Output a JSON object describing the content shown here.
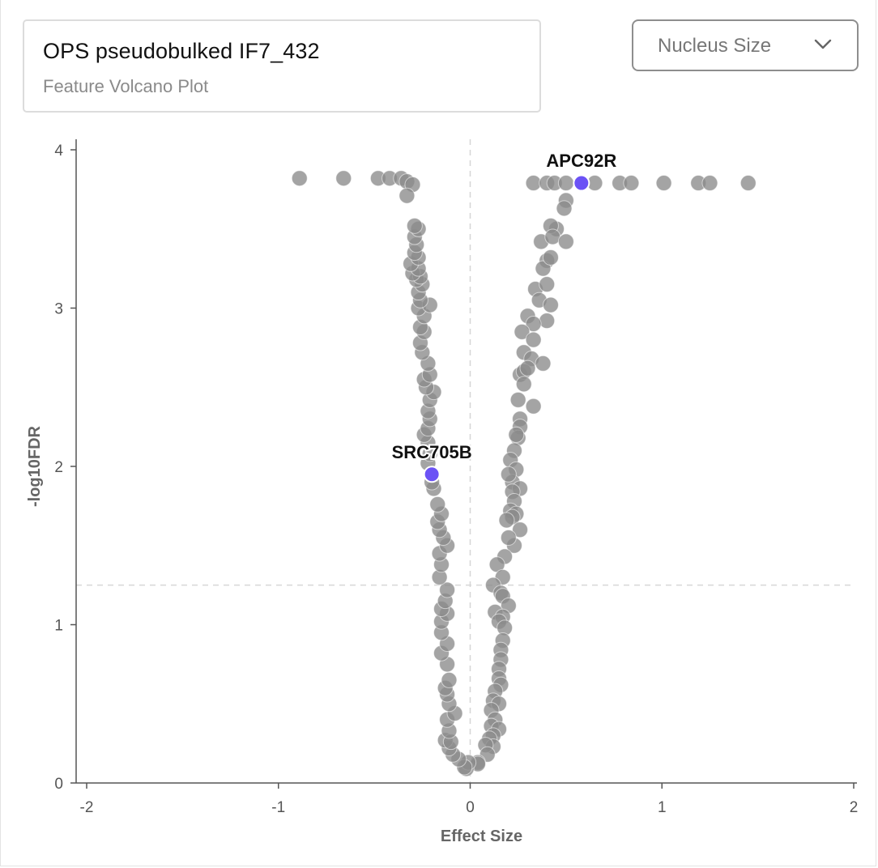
{
  "header": {
    "title": "OPS pseudobulked IF7_432",
    "subtitle": "Feature Volcano Plot"
  },
  "feature_select": {
    "value": "Nucleus Size",
    "icon": "chevron-down-icon"
  },
  "colors": {
    "point": "#8a8a8a",
    "highlight": "#6b52f5",
    "axis": "#555555",
    "threshold": "#d6d6d6"
  },
  "chart_data": {
    "type": "scatter",
    "xlabel": "Effect Size",
    "ylabel": "-log10FDR",
    "xlim": [
      -2,
      2
    ],
    "ylim": [
      0,
      4
    ],
    "xticks": [
      "-2",
      "-1",
      "0",
      "1",
      "2"
    ],
    "yticks": [
      "0",
      "1",
      "2",
      "3",
      "4"
    ],
    "thresholds": {
      "y": 1.25,
      "x": 0
    },
    "highlighted": [
      {
        "label": "APC92R",
        "x": 0.58,
        "y": 3.79
      },
      {
        "label": "SRC705B",
        "x": -0.2,
        "y": 1.95
      }
    ],
    "points": [
      [
        -0.89,
        3.82
      ],
      [
        -0.66,
        3.82
      ],
      [
        -0.48,
        3.82
      ],
      [
        -0.42,
        3.82
      ],
      [
        -0.36,
        3.82
      ],
      [
        -0.33,
        3.8
      ],
      [
        -0.3,
        3.78
      ],
      [
        -0.33,
        3.71
      ],
      [
        0.33,
        3.79
      ],
      [
        0.4,
        3.79
      ],
      [
        0.44,
        3.79
      ],
      [
        0.5,
        3.79
      ],
      [
        0.65,
        3.79
      ],
      [
        0.78,
        3.79
      ],
      [
        0.84,
        3.79
      ],
      [
        1.01,
        3.79
      ],
      [
        1.19,
        3.79
      ],
      [
        1.25,
        3.79
      ],
      [
        1.45,
        3.79
      ],
      [
        0.5,
        3.68
      ],
      [
        0.49,
        3.63
      ],
      [
        0.45,
        3.5
      ],
      [
        0.42,
        3.52
      ],
      [
        0.37,
        3.42
      ],
      [
        0.43,
        3.45
      ],
      [
        0.5,
        3.42
      ],
      [
        0.4,
        3.3
      ],
      [
        0.38,
        3.25
      ],
      [
        0.42,
        3.32
      ],
      [
        0.34,
        3.12
      ],
      [
        0.4,
        3.15
      ],
      [
        0.36,
        3.05
      ],
      [
        0.42,
        3.02
      ],
      [
        0.3,
        2.95
      ],
      [
        0.4,
        2.92
      ],
      [
        0.33,
        2.9
      ],
      [
        0.27,
        2.85
      ],
      [
        0.33,
        2.8
      ],
      [
        0.28,
        2.72
      ],
      [
        0.32,
        2.68
      ],
      [
        0.26,
        2.58
      ],
      [
        0.28,
        2.6
      ],
      [
        0.3,
        2.62
      ],
      [
        0.38,
        2.65
      ],
      [
        0.28,
        2.52
      ],
      [
        0.25,
        2.42
      ],
      [
        0.33,
        2.38
      ],
      [
        0.26,
        2.3
      ],
      [
        0.26,
        2.25
      ],
      [
        0.25,
        2.18
      ],
      [
        0.24,
        2.2
      ],
      [
        0.23,
        2.1
      ],
      [
        0.21,
        2.04
      ],
      [
        0.24,
        1.98
      ],
      [
        0.22,
        1.9
      ],
      [
        0.2,
        1.95
      ],
      [
        0.26,
        1.86
      ],
      [
        0.22,
        1.84
      ],
      [
        0.23,
        1.78
      ],
      [
        0.21,
        1.72
      ],
      [
        0.24,
        1.7
      ],
      [
        0.22,
        1.68
      ],
      [
        0.19,
        1.66
      ],
      [
        0.26,
        1.6
      ],
      [
        0.23,
        1.5
      ],
      [
        0.2,
        1.55
      ],
      [
        0.18,
        1.43
      ],
      [
        0.14,
        1.38
      ],
      [
        0.17,
        1.3
      ],
      [
        0.12,
        1.25
      ],
      [
        0.16,
        1.2
      ],
      [
        0.17,
        1.18
      ],
      [
        0.2,
        1.12
      ],
      [
        0.13,
        1.08
      ],
      [
        0.17,
        1.05
      ],
      [
        0.15,
        1.02
      ],
      [
        0.18,
        0.98
      ],
      [
        0.17,
        0.9
      ],
      [
        0.16,
        0.84
      ],
      [
        0.16,
        0.78
      ],
      [
        0.15,
        0.72
      ],
      [
        0.15,
        0.66
      ],
      [
        0.16,
        0.62
      ],
      [
        0.13,
        0.58
      ],
      [
        0.12,
        0.52
      ],
      [
        0.15,
        0.5
      ],
      [
        0.11,
        0.46
      ],
      [
        0.13,
        0.4
      ],
      [
        0.11,
        0.36
      ],
      [
        0.15,
        0.34
      ],
      [
        0.12,
        0.3
      ],
      [
        0.1,
        0.28
      ],
      [
        0.12,
        0.23
      ],
      [
        0.08,
        0.24
      ],
      [
        0.09,
        0.18
      ],
      [
        0.04,
        0.13
      ],
      [
        0.04,
        0.12
      ],
      [
        -0.02,
        0.09
      ],
      [
        -0.01,
        0.13
      ],
      [
        -0.03,
        0.1
      ],
      [
        -0.06,
        0.15
      ],
      [
        -0.09,
        0.18
      ],
      [
        -0.11,
        0.22
      ],
      [
        -0.13,
        0.27
      ],
      [
        -0.1,
        0.26
      ],
      [
        -0.11,
        0.33
      ],
      [
        -0.12,
        0.4
      ],
      [
        -0.08,
        0.44
      ],
      [
        -0.11,
        0.5
      ],
      [
        -0.12,
        0.56
      ],
      [
        -0.13,
        0.6
      ],
      [
        -0.11,
        0.65
      ],
      [
        -0.12,
        0.75
      ],
      [
        -0.15,
        0.82
      ],
      [
        -0.12,
        0.88
      ],
      [
        -0.15,
        0.95
      ],
      [
        -0.15,
        1.02
      ],
      [
        -0.12,
        1.07
      ],
      [
        -0.15,
        1.1
      ],
      [
        -0.13,
        1.15
      ],
      [
        -0.12,
        1.22
      ],
      [
        -0.16,
        1.3
      ],
      [
        -0.15,
        1.38
      ],
      [
        -0.16,
        1.45
      ],
      [
        -0.12,
        1.5
      ],
      [
        -0.14,
        1.55
      ],
      [
        -0.16,
        1.6
      ],
      [
        -0.17,
        1.65
      ],
      [
        -0.15,
        1.7
      ],
      [
        -0.17,
        1.76
      ],
      [
        -0.19,
        1.86
      ],
      [
        -0.2,
        1.9
      ],
      [
        -0.22,
        2.02
      ],
      [
        -0.21,
        2.08
      ],
      [
        -0.22,
        2.15
      ],
      [
        -0.24,
        2.2
      ],
      [
        -0.22,
        2.24
      ],
      [
        -0.21,
        2.3
      ],
      [
        -0.22,
        2.35
      ],
      [
        -0.21,
        2.42
      ],
      [
        -0.19,
        2.47
      ],
      [
        -0.23,
        2.5
      ],
      [
        -0.24,
        2.55
      ],
      [
        -0.21,
        2.58
      ],
      [
        -0.22,
        2.65
      ],
      [
        -0.25,
        2.72
      ],
      [
        -0.26,
        2.78
      ],
      [
        -0.24,
        2.85
      ],
      [
        -0.26,
        2.88
      ],
      [
        -0.24,
        2.95
      ],
      [
        -0.27,
        3.0
      ],
      [
        -0.21,
        3.02
      ],
      [
        -0.26,
        3.05
      ],
      [
        -0.27,
        3.1
      ],
      [
        -0.25,
        3.15
      ],
      [
        -0.28,
        3.18
      ],
      [
        -0.26,
        3.2
      ],
      [
        -0.3,
        3.22
      ],
      [
        -0.27,
        3.25
      ],
      [
        -0.31,
        3.28
      ],
      [
        -0.27,
        3.32
      ],
      [
        -0.29,
        3.35
      ],
      [
        -0.28,
        3.4
      ],
      [
        -0.29,
        3.45
      ],
      [
        -0.27,
        3.5
      ],
      [
        -0.29,
        3.52
      ]
    ]
  }
}
